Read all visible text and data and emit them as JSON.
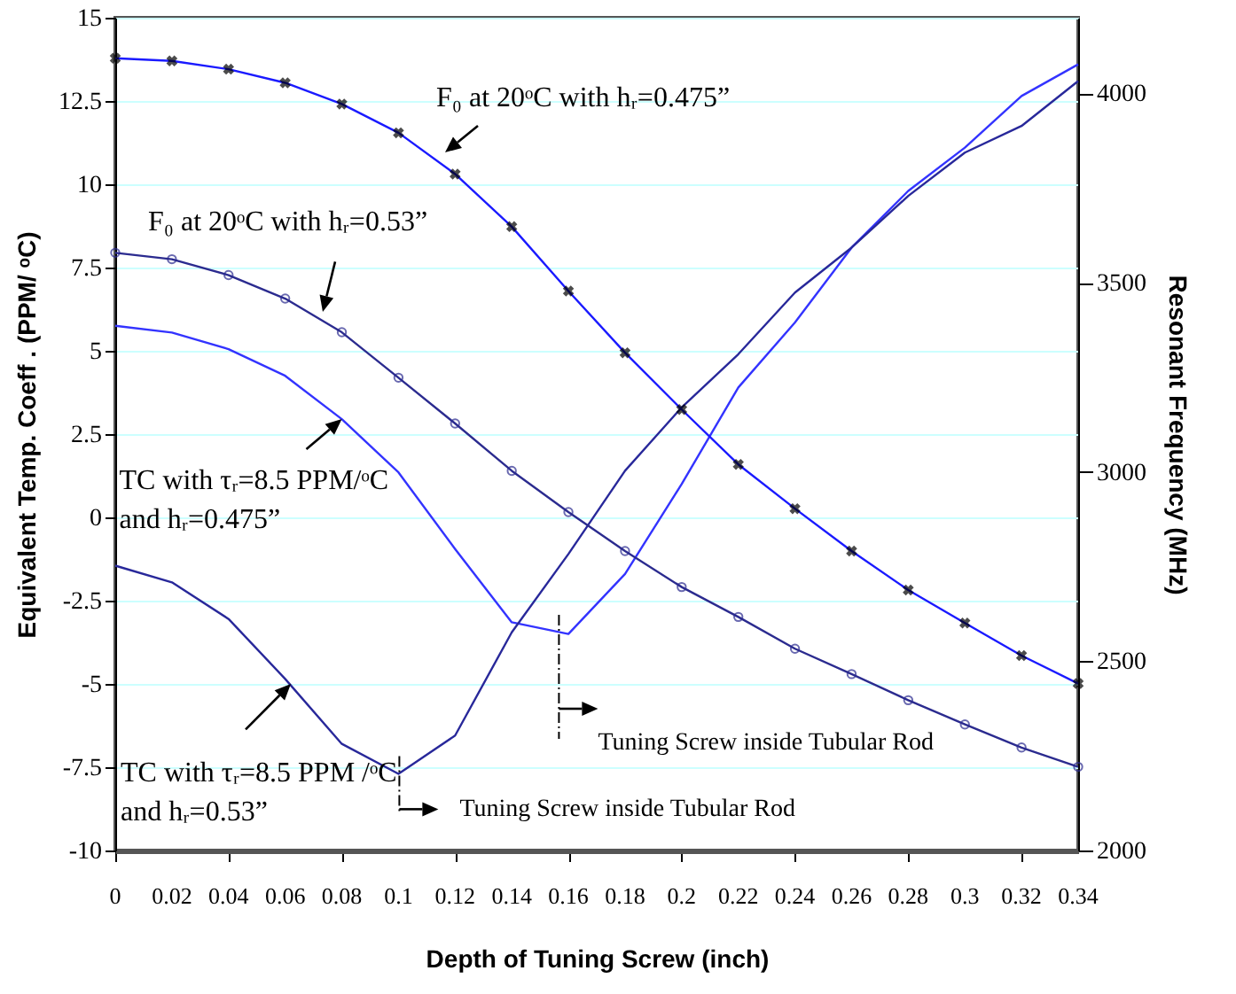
{
  "chart_data": {
    "type": "line",
    "xlabel": "Depth of Tuning Screw (inch)",
    "ylabel": "Equivalent Temp. Coeff . (PPM/ ᵒC)",
    "y2label": "Resonant Frequency (MHz)",
    "x": [
      0,
      0.02,
      0.04,
      0.06,
      0.08,
      0.1,
      0.12,
      0.14,
      0.16,
      0.18,
      0.2,
      0.22,
      0.24,
      0.26,
      0.28,
      0.3,
      0.32,
      0.34
    ],
    "series": [
      {
        "color": "#1a1aff",
        "axis": "y2",
        "marker": "cross",
        "values": [
          4093,
          4086,
          4064,
          4028,
          3972,
          3896,
          3787,
          3648,
          3478,
          3315,
          3165,
          3020,
          2903,
          2791,
          2688,
          2601,
          2515,
          2441
        ]
      },
      {
        "color": "#2b2b8f",
        "axis": "y2",
        "marker": "circle",
        "values": [
          3579,
          3562,
          3520,
          3458,
          3369,
          3249,
          3128,
          3003,
          2894,
          2791,
          2696,
          2617,
          2533,
          2466,
          2397,
          2333,
          2272,
          2221
        ]
      },
      {
        "color": "#3333ff",
        "values": [
          5.75,
          5.55,
          5.05,
          4.25,
          2.95,
          1.35,
          -0.95,
          -3.15,
          -3.5,
          -1.7,
          1.0,
          3.9,
          5.85,
          8.1,
          9.8,
          11.1,
          12.65,
          13.6
        ]
      },
      {
        "color": "#28289a",
        "values": [
          -1.45,
          -1.95,
          -3.05,
          -4.85,
          -6.8,
          -7.7,
          -6.55,
          -3.45,
          -1.1,
          1.4,
          3.3,
          4.9,
          6.75,
          8.1,
          9.65,
          10.95,
          11.75,
          13.1
        ]
      }
    ],
    "annotations": [
      "F₀ at 20ᵒC with hᵣ=0.475”",
      "F₀ at 20ᵒC with hᵣ=0.53”",
      {
        "text": "TC with τᵣ=8.5 PPM/ᵒC\nand hᵣ=0.475”",
        "x": 0.08,
        "y": 2.95
      },
      {
        "text": "TC with τᵣ=8.5 PPM /ᵒC\nand hᵣ=0.53”",
        "x": 0.062,
        "y": -5.0
      },
      "Tuning Screw inside Tubular Rod",
      "Tuning Screw inside Tubular Rod"
    ],
    "xlim": [
      0,
      0.34
    ],
    "xticks": [
      0,
      0.02,
      0.04,
      0.06,
      0.08,
      0.1,
      0.12,
      0.14,
      0.16,
      0.18,
      0.2,
      0.22,
      0.24,
      0.26,
      0.28,
      0.3,
      0.32,
      0.34
    ],
    "ylim": [
      -10,
      15
    ],
    "yticks": [
      -10,
      -7.5,
      -5,
      -2.5,
      0,
      2.5,
      5,
      7.5,
      10,
      12.5,
      15
    ],
    "y2lim": [
      2000,
      4200
    ],
    "y2ticks": [
      2000,
      2500,
      3000,
      3500,
      4000
    ],
    "grid": "y"
  }
}
